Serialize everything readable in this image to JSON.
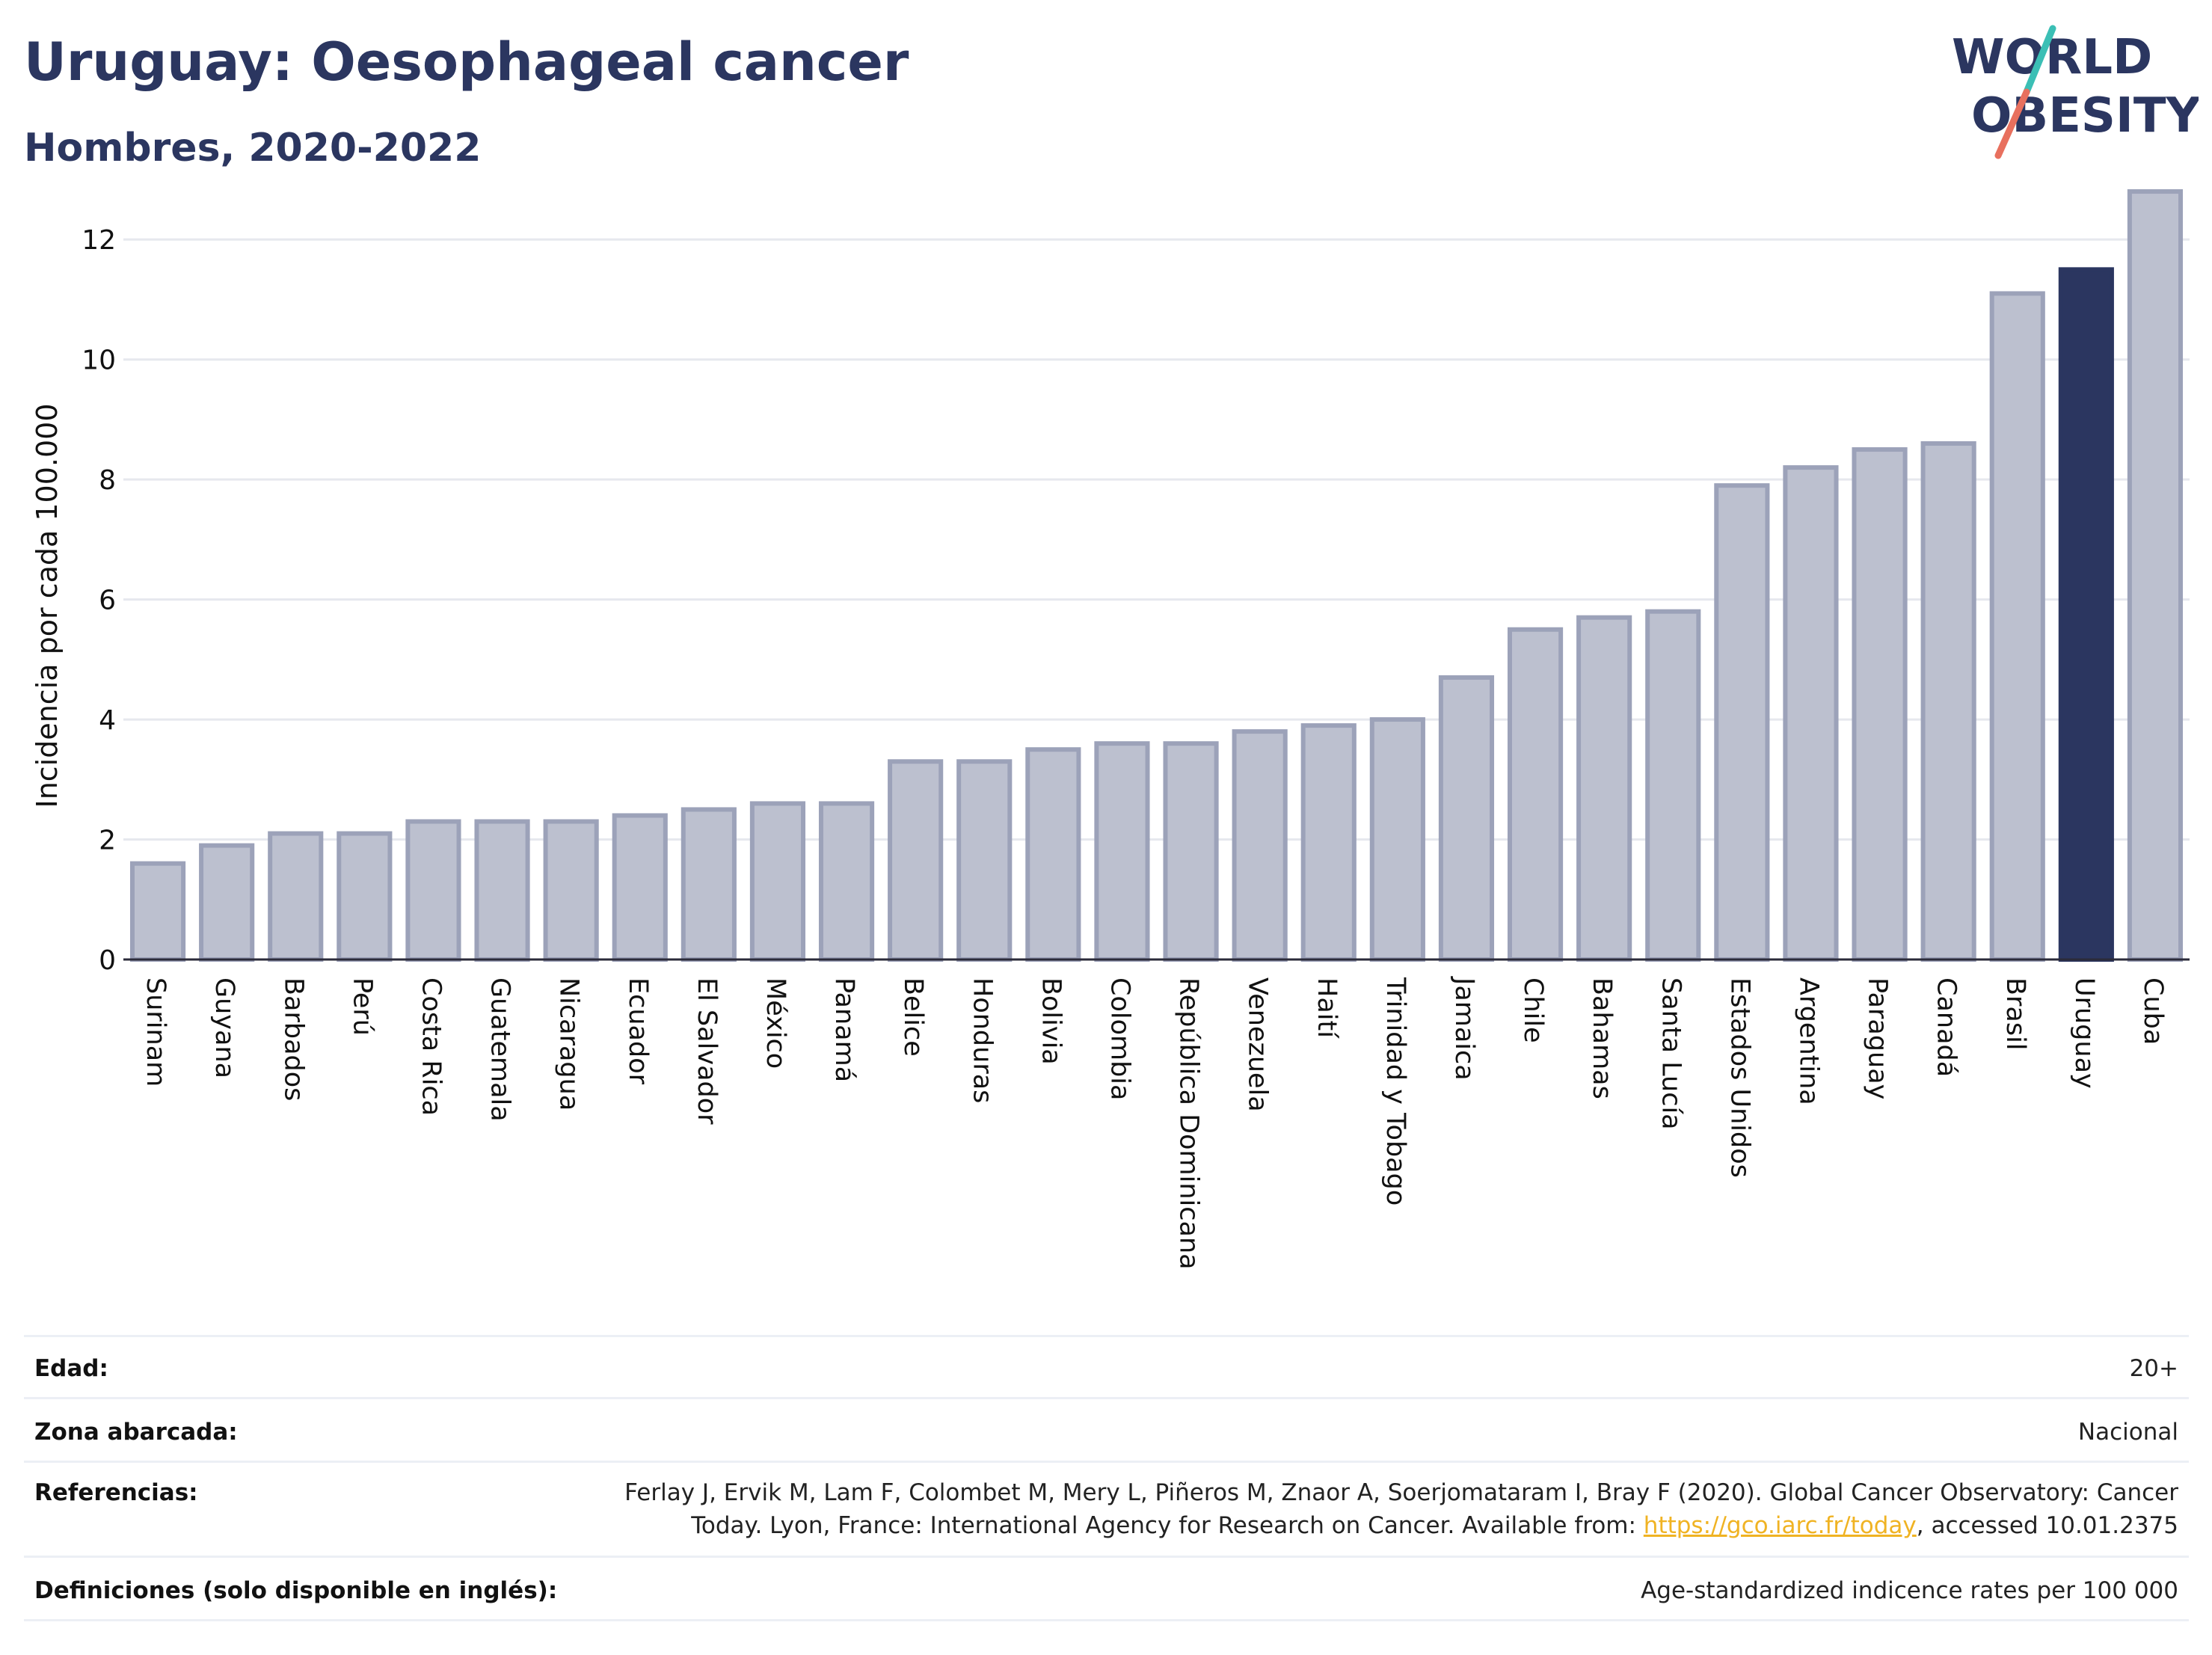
{
  "header": {
    "title": "Uruguay: Oesophageal cancer",
    "subtitle": "Hombres, 2020-2022"
  },
  "logo": {
    "line1": "WORLD",
    "line2": "OBESITY",
    "text_color": "#2b3660",
    "accent_teal": "#3bbfb5",
    "accent_coral": "#e8705e"
  },
  "chart_data": {
    "type": "bar",
    "ylabel": "Incidencia por cada 100.000",
    "ylim": [
      0,
      13
    ],
    "yticks": [
      0,
      2,
      4,
      6,
      8,
      10,
      12
    ],
    "grid": true,
    "highlight": "Uruguay",
    "colors": {
      "default_fill": "#bcc0cf",
      "default_stroke": "#9ca2b9",
      "highlight_fill": "#2b3660"
    },
    "categories": [
      "Surinam",
      "Guyana",
      "Barbados",
      "Perú",
      "Costa Rica",
      "Guatemala",
      "Nicaragua",
      "Ecuador",
      "El Salvador",
      "México",
      "Panamá",
      "Belice",
      "Honduras",
      "Bolivia",
      "Colombia",
      "República Dominicana",
      "Venezuela",
      "Haití",
      "Trinidad y Tobago",
      "Jamaica",
      "Chile",
      "Bahamas",
      "Santa Lucía",
      "Estados Unidos",
      "Argentina",
      "Paraguay",
      "Canadá",
      "Brasil",
      "Uruguay",
      "Cuba"
    ],
    "values": [
      1.6,
      1.9,
      2.1,
      2.1,
      2.3,
      2.3,
      2.3,
      2.4,
      2.5,
      2.6,
      2.6,
      3.3,
      3.3,
      3.5,
      3.6,
      3.6,
      3.8,
      3.9,
      4.0,
      4.7,
      5.5,
      5.7,
      5.8,
      7.9,
      8.2,
      8.5,
      8.6,
      11.1,
      11.5,
      12.8
    ]
  },
  "meta": {
    "edad_label": "Edad:",
    "edad_value": "20+",
    "zona_label": "Zona abarcada:",
    "zona_value": "Nacional",
    "ref_label": "Referencias:",
    "ref_line1": "Ferlay J, Ervik M, Lam F, Colombet M, Mery L, Piñeros M, Znaor A, Soerjomataram I, Bray F (2020). Global Cancer Observatory: Cancer",
    "ref_line2_pre": "Today. Lyon, France: International Agency for Research on Cancer. Available from: ",
    "ref_link": "https://gco.iarc.fr/today",
    "ref_line2_post": ", accessed 10.01.2375",
    "def_label": "Definiciones (solo disponible en inglés):",
    "def_value": "Age-standardized indicence rates per 100 000"
  }
}
